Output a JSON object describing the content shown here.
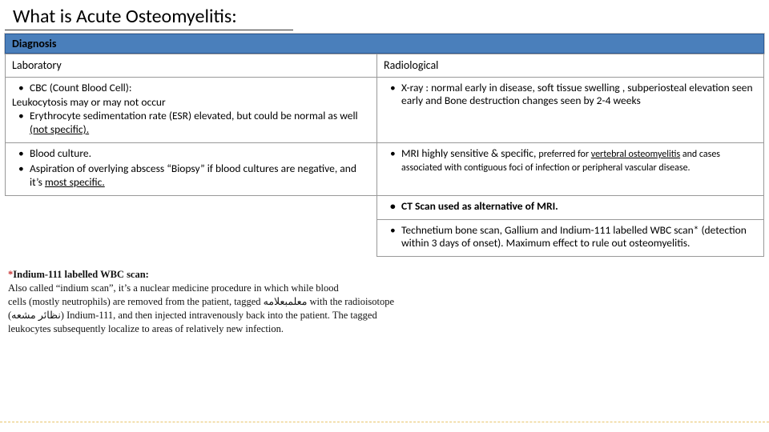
{
  "title": "What is Acute Osteomyelitis:",
  "section": "Diagnosis",
  "headers": {
    "lab": "Laboratory",
    "rad": "Radiological"
  },
  "lab": {
    "r1a": "CBC (Count Blood Cell):",
    "r1b": "Leukocytosis may or may not occur",
    "r1c_pre": "Erythrocyte sedimentation rate (ESR) elevated, but could be normal as well ",
    "r1c_u": "(not specific).",
    "r2a": "Blood culture.",
    "r2b_pre": "Aspiration of overlying abscess “Biopsy” if blood cultures are negative, and it’s ",
    "r2b_u": "most specific."
  },
  "rad": {
    "r1": "X-ray : normal early in disease, soft tissue swelling , subperiosteal elevation  seen early and Bone destruction changes seen by 2-4 weeks",
    "r2a": "MRI highly sensitive & specific, ",
    "r2b": "preferred for ",
    "r2c": "vertebral osteomyelitis",
    "r2d": " and cases associated with contiguous foci of infection or peripheral vascular disease.",
    "r3": "CT Scan used as alternative of MRI.",
    "r4": "Technetium bone scan, Gallium and Indium-111 labelled WBC scan* (detection within 3 days of onset). Maximum effect to rule out osteomyelitis."
  },
  "footnote": {
    "star": "*",
    "lead": "Indium-111 labelled WBC scan:",
    "l1": "Also called “indium scan”, it’s a nuclear medicine procedure in which while blood",
    "l2a": "cells (mostly neutrophils) are removed from the patient, tagged ",
    "l2_ar1": "معلمبعلامه",
    "l2b": " with the radioisotope",
    "l3a": "(",
    "l3_ar2": "نظائر مشعه",
    "l3b": ") Indium-111, and then injected intravenously back into the patient. The tagged",
    "l4": "leukocytes subsequently localize to areas of relatively new infection."
  },
  "colors": {
    "section_bg": "#4a7fbb",
    "border": "#999999",
    "dash": "#e8c46a",
    "star": "#c83232"
  }
}
